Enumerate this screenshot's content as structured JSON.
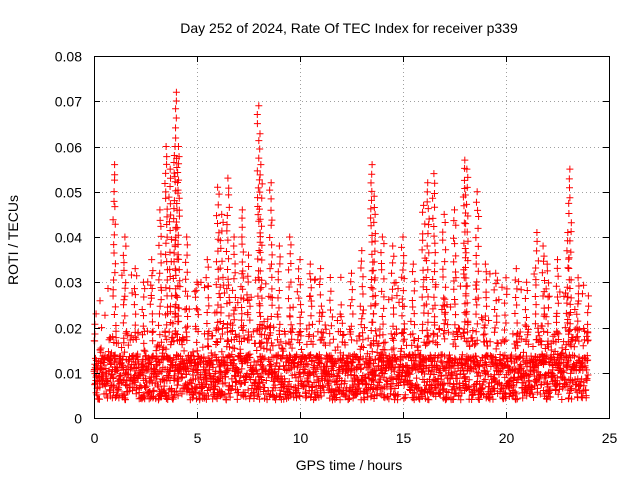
{
  "chart_data": {
    "type": "scatter",
    "title": "Day 252 of 2024, Rate Of TEC Index for receiver p339",
    "xlabel": "GPS time / hours",
    "ylabel": "ROTI / TECUs",
    "xlim": [
      0,
      25
    ],
    "ylim": [
      0,
      0.08
    ],
    "xticks": [
      "0",
      "5",
      "10",
      "15",
      "20",
      "25"
    ],
    "yticks": [
      "0",
      "0.01",
      "0.02",
      "0.03",
      "0.04",
      "0.05",
      "0.06",
      "0.07",
      "0.08"
    ],
    "grid": true,
    "marker": "+",
    "color": "#ff0000",
    "x": [
      0.1,
      0.3,
      0.8,
      1.0,
      1.5,
      2.0,
      2.4,
      2.8,
      3.2,
      3.5,
      3.7,
      3.9,
      4.0,
      4.1,
      4.5,
      5.0,
      5.5,
      6.0,
      6.2,
      6.5,
      6.8,
      7.2,
      7.5,
      8.0,
      8.1,
      8.6,
      9.0,
      9.5,
      10.0,
      10.5,
      11.0,
      11.5,
      12.0,
      12.5,
      13.0,
      13.5,
      13.6,
      14.0,
      14.5,
      15.0,
      15.5,
      16.0,
      16.2,
      16.5,
      17.0,
      17.5,
      18.0,
      18.1,
      18.6,
      19.0,
      19.5,
      20.0,
      20.5,
      21.0,
      21.5,
      21.8,
      22.0,
      22.5,
      23.0,
      23.1,
      23.5,
      24.0
    ],
    "y": [
      0.023,
      0.015,
      0.012,
      0.056,
      0.04,
      0.033,
      0.03,
      0.035,
      0.046,
      0.06,
      0.055,
      0.058,
      0.072,
      0.06,
      0.04,
      0.03,
      0.035,
      0.051,
      0.045,
      0.053,
      0.04,
      0.046,
      0.036,
      0.069,
      0.056,
      0.052,
      0.038,
      0.04,
      0.035,
      0.034,
      0.033,
      0.028,
      0.025,
      0.032,
      0.037,
      0.056,
      0.049,
      0.04,
      0.038,
      0.04,
      0.034,
      0.047,
      0.052,
      0.054,
      0.045,
      0.046,
      0.057,
      0.055,
      0.05,
      0.034,
      0.032,
      0.031,
      0.033,
      0.03,
      0.041,
      0.038,
      0.034,
      0.035,
      0.041,
      0.055,
      0.031,
      0.027
    ],
    "baseline_band": {
      "x_range": [
        0,
        24
      ],
      "y_min": 0.004,
      "y_typical": 0.01,
      "y_max": 0.02
    }
  }
}
